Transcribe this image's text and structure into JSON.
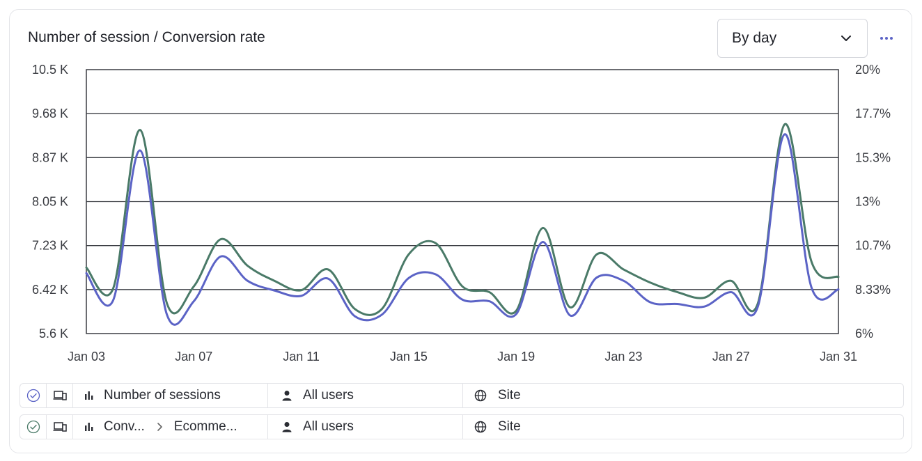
{
  "card": {
    "title": "Number of session / Conversion rate",
    "dropdown_value": "By day",
    "more_icon": "more-horizontal-icon",
    "accent": "#5b63c6"
  },
  "chart_data": {
    "type": "line",
    "title": "Number of session / Conversion rate",
    "x": [
      "Jan 03",
      "Jan 04",
      "Jan 05",
      "Jan 06",
      "Jan 07",
      "Jan 08",
      "Jan 09",
      "Jan 10",
      "Jan 11",
      "Jan 12",
      "Jan 13",
      "Jan 14",
      "Jan 15",
      "Jan 16",
      "Jan 17",
      "Jan 18",
      "Jan 19",
      "Jan 20",
      "Jan 21",
      "Jan 22",
      "Jan 23",
      "Jan 24",
      "Jan 25",
      "Jan 26",
      "Jan 27",
      "Jan 28",
      "Jan 29",
      "Jan 30",
      "Jan 31"
    ],
    "x_tick_labels": [
      "Jan 03",
      "Jan 07",
      "Jan 11",
      "Jan 15",
      "Jan 19",
      "Jan 23",
      "Jan 27",
      "Jan 31"
    ],
    "y_left": {
      "ticks": [
        "10.5 K",
        "9.68 K",
        "8.87 K",
        "8.05 K",
        "7.23 K",
        "6.42 K",
        "5.6 K"
      ],
      "ylim": [
        5600,
        10500
      ]
    },
    "y_right": {
      "ticks": [
        "20%",
        "17.7%",
        "15.3%",
        "13%",
        "10.7%",
        "8.33%",
        "6%"
      ],
      "ylim": [
        6,
        20
      ]
    },
    "grid": true,
    "series": [
      {
        "name": "Number of sessions",
        "axis": "left",
        "color": "#5b63c6",
        "values": [
          6720,
          6220,
          9000,
          5950,
          6200,
          7030,
          6580,
          6400,
          6300,
          6620,
          5920,
          5950,
          6630,
          6700,
          6230,
          6200,
          5960,
          7300,
          5940,
          6640,
          6580,
          6180,
          6150,
          6100,
          6370,
          6100,
          9300,
          6450,
          6420
        ]
      },
      {
        "name": "Conversion rate",
        "axis": "right",
        "color": "#4a7a68",
        "values": [
          9.5,
          8.4,
          16.8,
          7.6,
          8.5,
          11.0,
          9.6,
          8.8,
          8.3,
          9.4,
          7.3,
          7.3,
          10.2,
          10.8,
          8.5,
          8.2,
          7.2,
          11.6,
          7.4,
          10.2,
          9.4,
          8.7,
          8.2,
          7.9,
          8.8,
          7.6,
          17.1,
          9.8,
          9.0
        ]
      }
    ]
  },
  "legend": [
    {
      "check_icon": "check-circle-icon",
      "device_icon": "devices-icon",
      "metric_icon": "bar-chart-icon",
      "metric": "Number of sessions",
      "segment_icon": "user-icon",
      "segment": "All users",
      "scope_icon": "globe-icon",
      "scope": "Site",
      "check_color": "#5b63c6"
    },
    {
      "check_icon": "check-circle-icon",
      "device_icon": "devices-icon",
      "metric_icon": "bar-chart-icon",
      "metric": "Conv...",
      "metric_arrow_icon": "chevron-right-icon",
      "metric_sub": "Ecomme...",
      "segment_icon": "user-icon",
      "segment": "All users",
      "scope_icon": "globe-icon",
      "scope": "Site",
      "check_color": "#4a7a68"
    }
  ]
}
